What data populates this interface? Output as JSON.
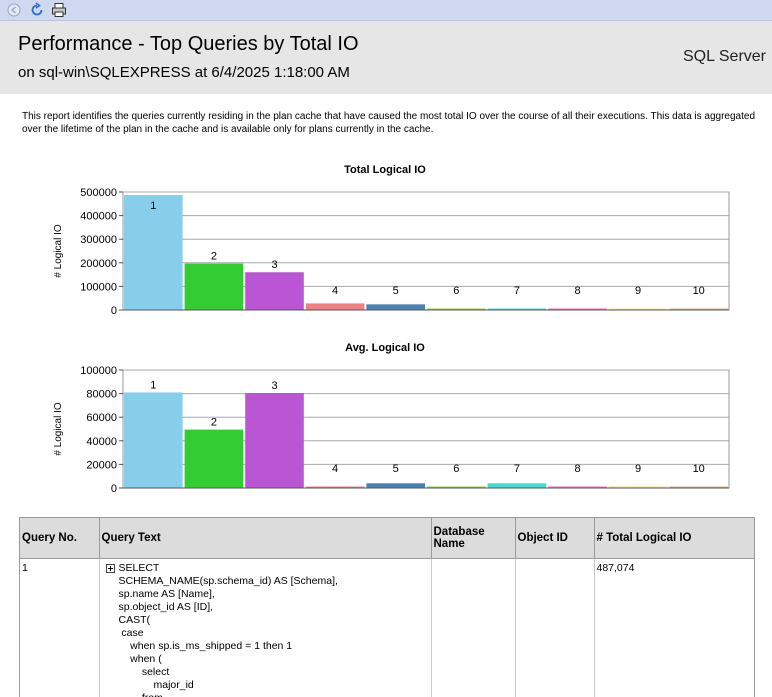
{
  "toolbar": {
    "icons": [
      "back-icon",
      "refresh-icon",
      "print-icon"
    ]
  },
  "header": {
    "title": "Performance - Top Queries by Total IO",
    "subtitle": "on sql-win\\SQLEXPRESS at 6/4/2025 1:18:00 AM",
    "brand": "SQL Server",
    "background": "#e6e6e6"
  },
  "description": "This report identifies the queries currently residing in the plan cache that have caused the most total IO over the course of all their executions.  This data is aggregated over the lifetime of the plan in the cache and is available only for plans currently in the cache.",
  "colors": [
    "#87ceeb",
    "#32cd32",
    "#ba55d3",
    "#f08080",
    "#4682b4",
    "#9acd32",
    "#40e0d0",
    "#ff69b4",
    "#f0e68c",
    "#d2b48c"
  ],
  "chart_data": [
    {
      "type": "bar",
      "title": "Total Logical IO",
      "ylabel": "# Logical IO",
      "xlabel": "",
      "categories": [
        "1",
        "2",
        "3",
        "4",
        "5",
        "6",
        "7",
        "8",
        "9",
        "10"
      ],
      "values": [
        487074,
        197000,
        160000,
        28000,
        24000,
        2500,
        2000,
        1200,
        600,
        300
      ],
      "ylim": [
        0,
        500000
      ],
      "yticks": [
        "0",
        "100000",
        "200000",
        "300000",
        "400000",
        "500000"
      ],
      "grid": true,
      "data_labels": [
        "1",
        "2",
        "3",
        "4",
        "5",
        "6",
        "7",
        "8",
        "9",
        "10"
      ]
    },
    {
      "type": "bar",
      "title": "Avg. Logical IO",
      "ylabel": "# Logical IO",
      "xlabel": "",
      "categories": [
        "1",
        "2",
        "3",
        "4",
        "5",
        "6",
        "7",
        "8",
        "9",
        "10"
      ],
      "values": [
        81000,
        49500,
        80500,
        700,
        4000,
        1000,
        4000,
        800,
        500,
        300
      ],
      "ylim": [
        0,
        100000
      ],
      "yticks": [
        "0",
        "20000",
        "40000",
        "60000",
        "80000",
        "100000"
      ],
      "grid": true,
      "data_labels": [
        "1",
        "2",
        "3",
        "4",
        "5",
        "6",
        "7",
        "8",
        "9",
        "10"
      ]
    }
  ],
  "table": {
    "headers": [
      "Query No.",
      "Query Text",
      "Database Name",
      "Object ID",
      "# Total Logical IO"
    ],
    "rows": [
      {
        "query_no": "1",
        "query_text": "SELECT\nSCHEMA_NAME(sp.schema_id) AS [Schema],\nsp.name AS [Name],\nsp.object_id AS [ID],\nCAST(\n case\n    when sp.is_ms_shipped = 1 then 1\n    when (\n        select\n            major_id\n        from",
        "database_name": "",
        "object_id": "",
        "total_logical_io": "487,074"
      }
    ]
  }
}
